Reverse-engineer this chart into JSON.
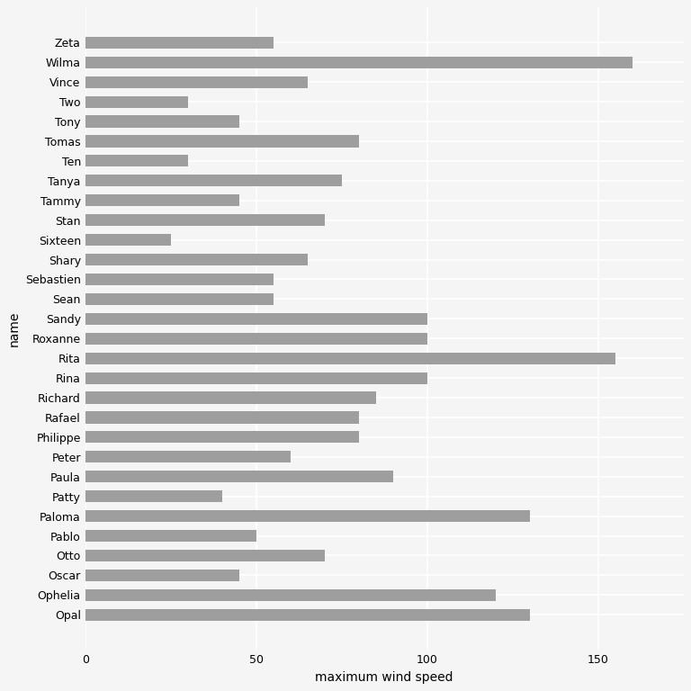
{
  "storms": [
    {
      "name": "Zeta",
      "wind": 55
    },
    {
      "name": "Wilma",
      "wind": 160
    },
    {
      "name": "Vince",
      "wind": 65
    },
    {
      "name": "Two",
      "wind": 30
    },
    {
      "name": "Tony",
      "wind": 45
    },
    {
      "name": "Tomas",
      "wind": 80
    },
    {
      "name": "Ten",
      "wind": 30
    },
    {
      "name": "Tanya",
      "wind": 75
    },
    {
      "name": "Tammy",
      "wind": 45
    },
    {
      "name": "Stan",
      "wind": 70
    },
    {
      "name": "Sixteen",
      "wind": 25
    },
    {
      "name": "Shary",
      "wind": 65
    },
    {
      "name": "Sebastien",
      "wind": 55
    },
    {
      "name": "Sean",
      "wind": 55
    },
    {
      "name": "Sandy",
      "wind": 100
    },
    {
      "name": "Roxanne",
      "wind": 100
    },
    {
      "name": "Rita",
      "wind": 155
    },
    {
      "name": "Rina",
      "wind": 100
    },
    {
      "name": "Richard",
      "wind": 85
    },
    {
      "name": "Rafael",
      "wind": 80
    },
    {
      "name": "Philippe",
      "wind": 80
    },
    {
      "name": "Peter",
      "wind": 60
    },
    {
      "name": "Paula",
      "wind": 90
    },
    {
      "name": "Patty",
      "wind": 40
    },
    {
      "name": "Paloma",
      "wind": 130
    },
    {
      "name": "Pablo",
      "wind": 50
    },
    {
      "name": "Otto",
      "wind": 70
    },
    {
      "name": "Oscar",
      "wind": 45
    },
    {
      "name": "Ophelia",
      "wind": 120
    },
    {
      "name": "Opal",
      "wind": 130
    }
  ],
  "bar_color": "#9e9e9e",
  "background_color": "#f5f5f5",
  "grid_color": "#ffffff",
  "xlabel": "maximum wind speed",
  "ylabel": "name",
  "xlim": [
    0,
    175
  ],
  "xticks": [
    0,
    50,
    100,
    150
  ],
  "label_fontsize": 10,
  "tick_fontsize": 9
}
